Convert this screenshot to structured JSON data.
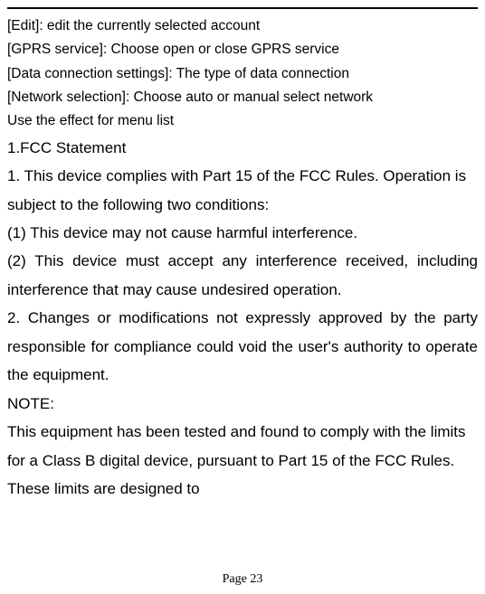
{
  "styles": {
    "menu_fontsize": 15.5,
    "body_fontsize": 17,
    "page_number_fontsize": 14,
    "text_color": "#000000",
    "background_color": "#ffffff",
    "divider_color": "#000000",
    "divider_thickness": 2,
    "line_height_menu": 1.7,
    "line_height_body": 1.85
  },
  "menu": {
    "edit": "[Edit]: edit the currently selected account",
    "gprs": "[GPRS service]: Choose open or close GPRS service",
    "data_conn": "[Data connection settings]: The type of data connection",
    "network": "[Network selection]: Choose auto or manual select network",
    "effect": "Use the effect for menu list"
  },
  "fcc": {
    "heading": "1.FCC Statement",
    "para1": "1. This device complies with Part 15 of the FCC Rules. Operation is subject to the following two conditions:",
    "line1": "(1) This device may not cause harmful interference.",
    "para2": "(2) This device must accept any interference received, including interference that may cause undesired operation.",
    "para3": "2. Changes or modifications not expressly approved by the party responsible for compliance could void the user's authority to operate the equipment.",
    "note": "NOTE:",
    "para4": "This equipment has been tested and found to comply with the limits for a Class B digital device, pursuant to Part 15 of the FCC Rules. These limits are designed to"
  },
  "page_number": "Page 23"
}
